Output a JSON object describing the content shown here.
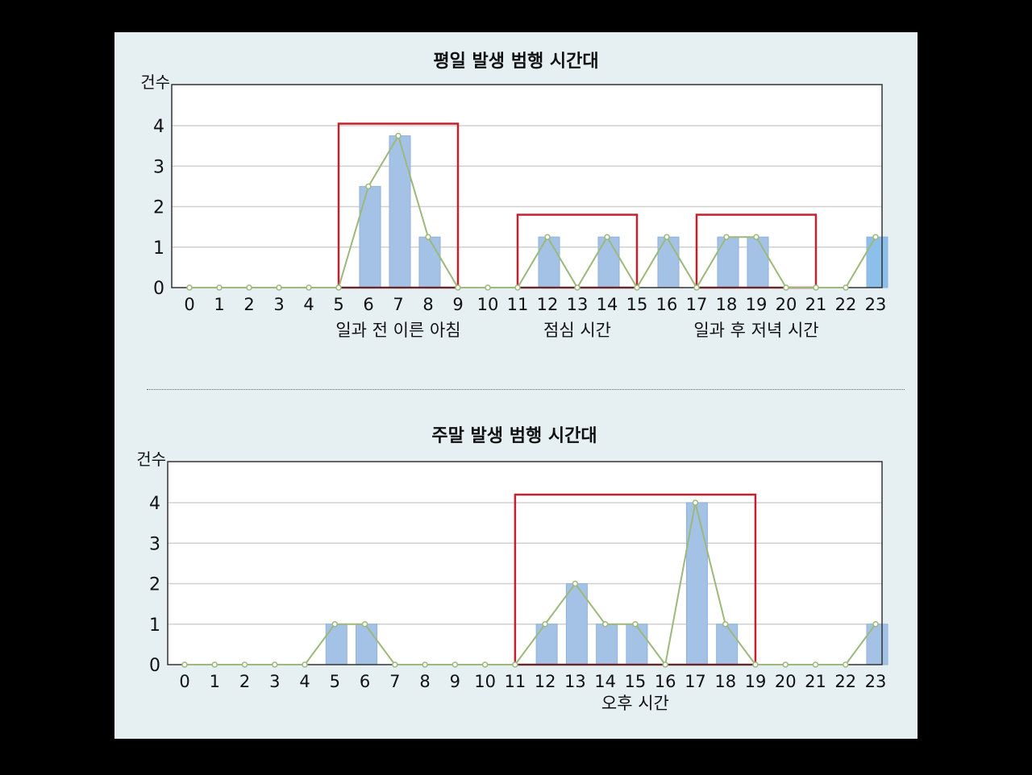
{
  "chart_data": [
    {
      "type": "bar",
      "title": "평일 발생 범행 시간대",
      "ylabel": "건수",
      "xlabel": "",
      "ylim": [
        0,
        4.9
      ],
      "yticks": [
        0,
        1,
        2,
        3,
        4
      ],
      "grid": true,
      "categories": [
        "0",
        "1",
        "2",
        "3",
        "4",
        "5",
        "6",
        "7",
        "8",
        "9",
        "10",
        "11",
        "12",
        "13",
        "14",
        "15",
        "16",
        "17",
        "18",
        "19",
        "20",
        "21",
        "22",
        "23"
      ],
      "values": [
        0,
        0,
        0,
        0,
        0,
        0,
        2.5,
        3.75,
        1.25,
        0,
        0,
        0,
        1.25,
        0,
        1.25,
        0,
        1.25,
        0,
        1.25,
        1.25,
        0,
        0,
        0,
        1.25
      ],
      "series": [
        {
          "name": "bars",
          "kind": "bar",
          "values": [
            0,
            0,
            0,
            0,
            0,
            0,
            2.5,
            3.75,
            1.25,
            0,
            0,
            0,
            1.25,
            0,
            1.25,
            0,
            1.25,
            0,
            1.25,
            1.25,
            0,
            0,
            0,
            1.25
          ]
        },
        {
          "name": "line",
          "kind": "line",
          "values": [
            0,
            0,
            0,
            0,
            0,
            0,
            2.5,
            3.75,
            1.25,
            0,
            0,
            0,
            1.25,
            0,
            1.25,
            0,
            1.25,
            0,
            1.25,
            1.25,
            0,
            0,
            0,
            1.25
          ]
        }
      ],
      "highlights": [
        {
          "from": 5,
          "to": 9,
          "label": "일과 전 이른 아침",
          "top": 4.05
        },
        {
          "from": 11,
          "to": 15,
          "label": "점심 시간",
          "top": 1.8
        },
        {
          "from": 17,
          "to": 21,
          "label": "일과 후 저녁 시간",
          "top": 1.8
        }
      ]
    },
    {
      "type": "bar",
      "title": "주말 발생 범행 시간대",
      "ylabel": "건수",
      "xlabel": "",
      "ylim": [
        0,
        4.9
      ],
      "yticks": [
        0,
        1,
        2,
        3,
        4
      ],
      "grid": true,
      "categories": [
        "0",
        "1",
        "2",
        "3",
        "4",
        "5",
        "6",
        "7",
        "8",
        "9",
        "10",
        "11",
        "12",
        "13",
        "14",
        "15",
        "16",
        "17",
        "18",
        "19",
        "20",
        "21",
        "22",
        "23"
      ],
      "values": [
        0,
        0,
        0,
        0,
        0,
        1,
        1,
        0,
        0,
        0,
        0,
        0,
        1,
        2,
        1,
        1,
        0,
        4,
        1,
        0,
        0,
        0,
        0,
        1
      ],
      "series": [
        {
          "name": "bars",
          "kind": "bar",
          "values": [
            0,
            0,
            0,
            0,
            0,
            1,
            1,
            0,
            0,
            0,
            0,
            0,
            1,
            2,
            1,
            1,
            0,
            4,
            1,
            0,
            0,
            0,
            0,
            1
          ]
        },
        {
          "name": "line",
          "kind": "line",
          "values": [
            0,
            0,
            0,
            0,
            0,
            1,
            1,
            0,
            0,
            0,
            0,
            0,
            1,
            2,
            1,
            1,
            0,
            4,
            1,
            0,
            0,
            0,
            0,
            1
          ]
        }
      ],
      "highlights": [
        {
          "from": 11,
          "to": 19,
          "label": "오후 시간",
          "top": 4.2
        }
      ]
    }
  ],
  "colors": {
    "panel_bg": "#e6f0f3",
    "bar": "#a4c2e6",
    "bar_edge": "#8fb2dc",
    "bar_alt": "#8cc0ea",
    "line": "#9cb87a",
    "marker_fill": "#ffffff",
    "highlight": "#c4202e",
    "grid": "#d0d0d0",
    "axis": "#333333"
  }
}
